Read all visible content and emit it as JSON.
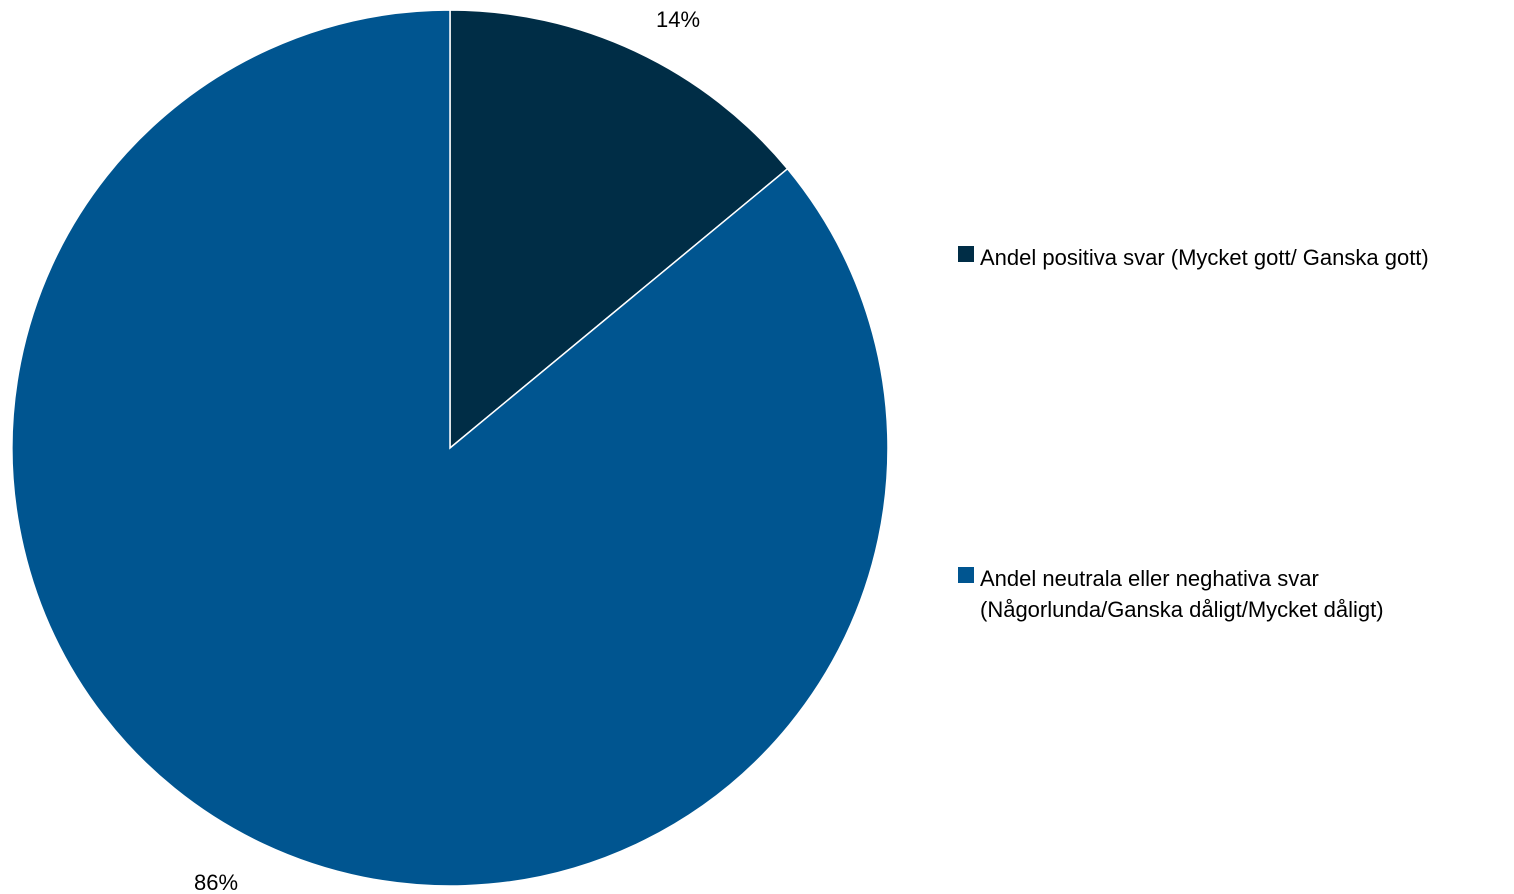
{
  "chart_data": {
    "type": "pie",
    "start_angle_deg": 0,
    "direction": "clockwise",
    "legend_position": "right",
    "slices": [
      {
        "label_lines": [
          "Andel positiva svar (Mycket gott/ Ganska gott)"
        ],
        "value": 14,
        "value_label": "14%",
        "color": "#002D46"
      },
      {
        "label_lines": [
          "Andel neutrala eller neghativa svar",
          "(Någorlunda/Ganska dåligt/Mycket dåligt)"
        ],
        "value": 86,
        "value_label": "86%",
        "color": "#005590"
      }
    ]
  }
}
